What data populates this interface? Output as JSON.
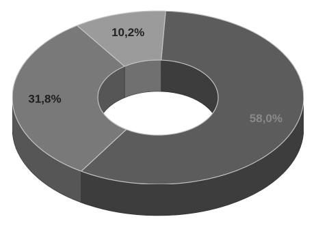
{
  "chart_data": {
    "type": "pie",
    "donut": true,
    "style": "3d",
    "title": "",
    "slices": [
      {
        "label": "58,0%",
        "value": 58.0,
        "color": "#5e5e5e",
        "side_color": "#3e3e3e",
        "text_color": "#8a8a8a"
      },
      {
        "label": "31,8%",
        "value": 31.8,
        "color": "#7c7c7c",
        "side_color": "#585858",
        "text_color": "#1e1e1e"
      },
      {
        "label": "10,2%",
        "value": 10.2,
        "color": "#9e9e9e",
        "side_color": "#727272",
        "text_color": "#222222"
      }
    ]
  }
}
